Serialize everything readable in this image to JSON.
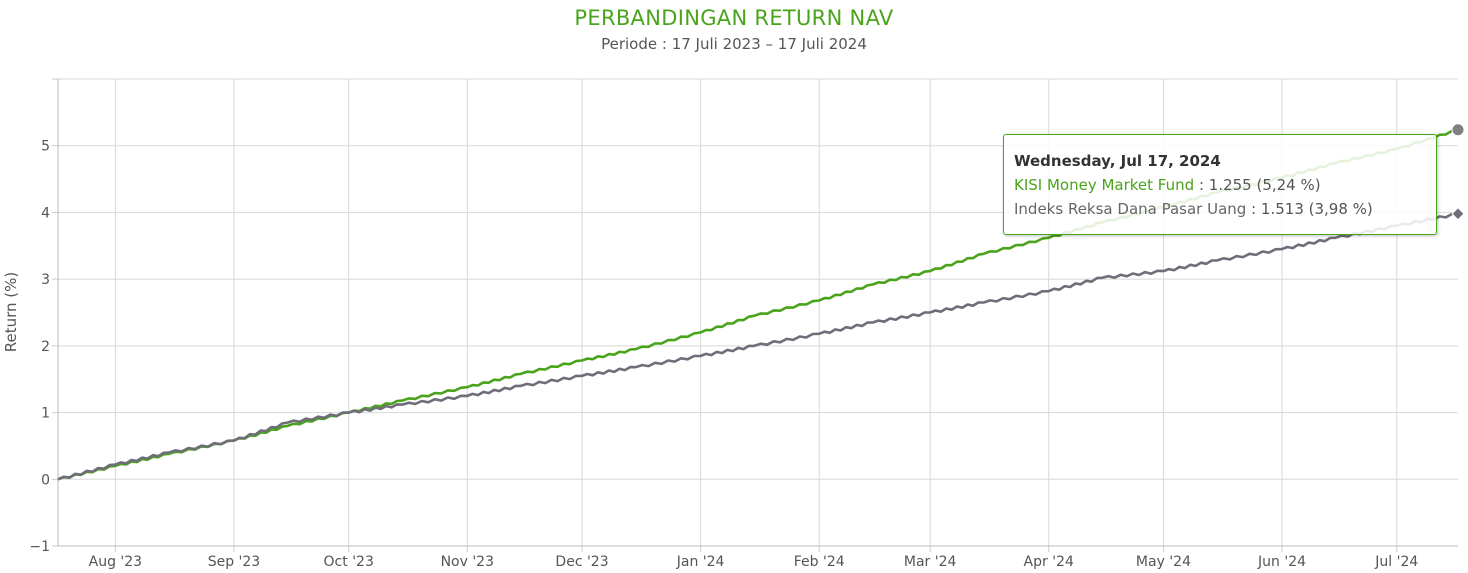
{
  "title": "PERBANDINGAN RETURN NAV",
  "subtitle": "Periode : 17 Juli 2023 – 17 Juli 2024",
  "colors": {
    "fund": "#4aa41b",
    "index": "#6e6d79",
    "title": "#4aa41b"
  },
  "tooltip": {
    "date": "Wednesday, Jul 17, 2024",
    "rows": [
      {
        "series": "KISI Money Market Fund",
        "value": ": 1.255 (5,24 %)"
      },
      {
        "series": "Indeks Reksa Dana Pasar Uang",
        "value": ": 1.513 (3,98 %)"
      }
    ]
  },
  "chart_data": {
    "type": "line",
    "title": "PERBANDINGAN RETURN NAV",
    "subtitle": "Periode : 17 Juli 2023 – 17 Juli 2024",
    "ylabel": "Return (%)",
    "xlabel": "",
    "ylim": [
      -1,
      6
    ],
    "xlim": [
      "2023-07-17",
      "2024-07-17"
    ],
    "y_ticks": [
      -1,
      0,
      1,
      2,
      3,
      4,
      5
    ],
    "y_tick_labels": [
      "−1",
      "0",
      "1",
      "2",
      "3",
      "4",
      "5"
    ],
    "x_ticks": [
      "2023-08-01",
      "2023-09-01",
      "2023-10-01",
      "2023-11-01",
      "2023-12-01",
      "2024-01-01",
      "2024-02-01",
      "2024-03-01",
      "2024-04-01",
      "2024-05-01",
      "2024-06-01",
      "2024-07-01"
    ],
    "x_tick_labels": [
      "Aug '23",
      "Sep '23",
      "Oct '23",
      "Nov '23",
      "Dec '23",
      "Jan '24",
      "Feb '24",
      "Mar '24",
      "Apr '24",
      "May '24",
      "Jun '24",
      "Jul '24"
    ],
    "grid": true,
    "legend": "none",
    "series": [
      {
        "name": "KISI Money Market Fund",
        "color": "#4aa41b",
        "x": [
          "2023-07-17",
          "2023-08-01",
          "2023-08-15",
          "2023-09-01",
          "2023-09-15",
          "2023-10-01",
          "2023-10-15",
          "2023-11-01",
          "2023-11-15",
          "2023-12-01",
          "2023-12-15",
          "2024-01-01",
          "2024-01-15",
          "2024-02-01",
          "2024-02-15",
          "2024-03-01",
          "2024-03-15",
          "2024-04-01",
          "2024-04-15",
          "2024-05-01",
          "2024-05-15",
          "2024-06-01",
          "2024-06-15",
          "2024-07-01",
          "2024-07-17"
        ],
        "y": [
          0.0,
          0.2,
          0.38,
          0.58,
          0.8,
          1.0,
          1.18,
          1.38,
          1.58,
          1.78,
          1.95,
          2.2,
          2.45,
          2.68,
          2.92,
          3.12,
          3.38,
          3.62,
          3.85,
          4.08,
          4.3,
          4.52,
          4.74,
          4.95,
          5.24
        ]
      },
      {
        "name": "Indeks Reksa Dana Pasar Uang",
        "color": "#6e6d79",
        "x": [
          "2023-07-17",
          "2023-08-01",
          "2023-08-15",
          "2023-09-01",
          "2023-09-15",
          "2023-10-01",
          "2023-10-15",
          "2023-11-01",
          "2023-11-15",
          "2023-12-01",
          "2023-12-15",
          "2024-01-01",
          "2024-01-15",
          "2024-02-01",
          "2024-02-15",
          "2024-03-01",
          "2024-03-15",
          "2024-04-01",
          "2024-04-15",
          "2024-05-01",
          "2024-05-15",
          "2024-06-01",
          "2024-06-15",
          "2024-07-01",
          "2024-07-17"
        ],
        "y": [
          0.0,
          0.22,
          0.4,
          0.58,
          0.85,
          1.0,
          1.12,
          1.25,
          1.4,
          1.55,
          1.68,
          1.85,
          2.0,
          2.18,
          2.35,
          2.5,
          2.65,
          2.82,
          3.02,
          3.12,
          3.28,
          3.45,
          3.62,
          3.8,
          3.98
        ]
      }
    ],
    "annotations": [
      "Wednesday, Jul 17, 2024",
      "KISI Money Market Fund : 1.255 (5,24 %)",
      "Indeks Reksa Dana Pasar Uang : 1.513 (3,98 %)"
    ]
  }
}
